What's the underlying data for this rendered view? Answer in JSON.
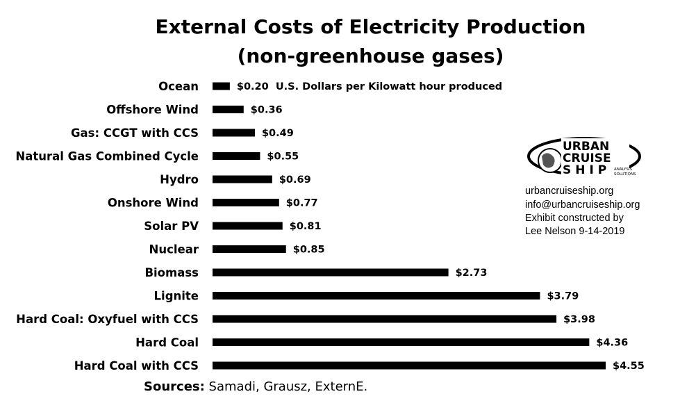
{
  "title_line1": "External Costs of Electricity Production",
  "title_line2": "(non-greenhouse gases)",
  "chart_data": {
    "type": "bar",
    "orientation": "horizontal",
    "categories": [
      "Ocean",
      "Offshore Wind",
      "Gas: CCGT with CCS",
      "Natural Gas Combined Cycle",
      "Hydro",
      "Onshore Wind",
      "Solar PV",
      "Nuclear",
      "Biomass",
      "Lignite",
      "Hard Coal: Oxyfuel with CCS",
      "Hard Coal",
      "Hard Coal with CCS"
    ],
    "values": [
      0.2,
      0.36,
      0.49,
      0.55,
      0.69,
      0.77,
      0.81,
      0.85,
      2.73,
      3.79,
      3.98,
      4.36,
      4.55
    ],
    "value_labels": [
      "$0.20",
      "$0.36",
      "$0.49",
      "$0.55",
      "$0.69",
      "$0.77",
      "$0.81",
      "$0.85",
      "$2.73",
      "$3.79",
      "$3.98",
      "$4.36",
      "$4.55"
    ],
    "unit_annotation": "U.S. Dollars per Kilowatt hour produced",
    "bar_color": "#000000",
    "xlim": [
      0,
      4.55
    ]
  },
  "logo": {
    "line1": "URBAN",
    "line2": "CRUISE",
    "line3": "SHIP",
    "tagline1": "ANALYSIS",
    "tagline2": "SOLUTIONS"
  },
  "info": {
    "website": "urbancruiseship.org",
    "email": "info@urbancruiseship.org",
    "constructed": "Exhibit constructed by",
    "author": "Lee Nelson 9-14-2019"
  },
  "sources": {
    "label": "Sources:",
    "text": "Samadi, Grausz, ExternE."
  }
}
